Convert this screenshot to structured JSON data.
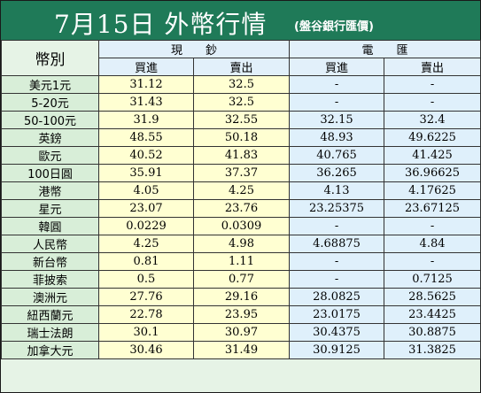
{
  "header": {
    "title": "7月15日 外幣行情",
    "subtitle": "(盤谷銀行匯價)"
  },
  "table": {
    "corner_label": "幣別",
    "group_cash": "現　　鈔",
    "group_wire": "電　　匯",
    "sub_buy": "買進",
    "sub_sell": "賣出",
    "rows": [
      {
        "currency": "美元1元",
        "cash_buy": "31.12",
        "cash_sell": "32.5",
        "wire_buy": "-",
        "wire_sell": "-"
      },
      {
        "currency": "5-20元",
        "cash_buy": "31.43",
        "cash_sell": "32.5",
        "wire_buy": "-",
        "wire_sell": "-"
      },
      {
        "currency": "50-100元",
        "cash_buy": "31.9",
        "cash_sell": "32.55",
        "wire_buy": "32.15",
        "wire_sell": "32.4"
      },
      {
        "currency": "英鎊",
        "cash_buy": "48.55",
        "cash_sell": "50.18",
        "wire_buy": "48.93",
        "wire_sell": "49.6225"
      },
      {
        "currency": "歐元",
        "cash_buy": "40.52",
        "cash_sell": "41.83",
        "wire_buy": "40.765",
        "wire_sell": "41.425"
      },
      {
        "currency": "100日圓",
        "cash_buy": "35.91",
        "cash_sell": "37.37",
        "wire_buy": "36.265",
        "wire_sell": "36.96625"
      },
      {
        "currency": "港幣",
        "cash_buy": "4.05",
        "cash_sell": "4.25",
        "wire_buy": "4.13",
        "wire_sell": "4.17625"
      },
      {
        "currency": "星元",
        "cash_buy": "23.07",
        "cash_sell": "23.76",
        "wire_buy": "23.25375",
        "wire_sell": "23.67125"
      },
      {
        "currency": "韓圓",
        "cash_buy": "0.0229",
        "cash_sell": "0.0309",
        "wire_buy": "-",
        "wire_sell": "-"
      },
      {
        "currency": "人民幣",
        "cash_buy": "4.25",
        "cash_sell": "4.98",
        "wire_buy": "4.68875",
        "wire_sell": "4.84"
      },
      {
        "currency": "新台幣",
        "cash_buy": "0.81",
        "cash_sell": "1.11",
        "wire_buy": "-",
        "wire_sell": "-"
      },
      {
        "currency": "菲披索",
        "cash_buy": "0.5",
        "cash_sell": "0.77",
        "wire_buy": "-",
        "wire_sell": "0.7125"
      },
      {
        "currency": "澳洲元",
        "cash_buy": "27.76",
        "cash_sell": "29.16",
        "wire_buy": "28.0825",
        "wire_sell": "28.5625"
      },
      {
        "currency": "紐西蘭元",
        "cash_buy": "22.78",
        "cash_sell": "23.95",
        "wire_buy": "23.0175",
        "wire_sell": "23.4425"
      },
      {
        "currency": "瑞士法朗",
        "cash_buy": "30.1",
        "cash_sell": "30.97",
        "wire_buy": "30.4375",
        "wire_sell": "30.8875"
      },
      {
        "currency": "加拿大元",
        "cash_buy": "30.46",
        "cash_sell": "31.49",
        "wire_buy": "30.9125",
        "wire_sell": "31.3825"
      }
    ]
  },
  "colors": {
    "title_bar": "#1f7a58",
    "cash_cells": "#ffffd2",
    "wire_cells": "#dff0fb",
    "row_header": "#d8eed8"
  }
}
